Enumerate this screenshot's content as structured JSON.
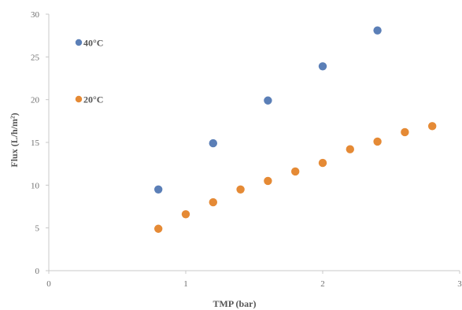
{
  "chart_data": {
    "type": "scatter",
    "xlabel": "TMP (bar)",
    "ylabel": "Flux (L/h/m²)",
    "xlim": [
      0,
      3
    ],
    "ylim": [
      0,
      30
    ],
    "xticks": [
      0,
      1,
      2,
      3
    ],
    "yticks": [
      0,
      5,
      10,
      15,
      20,
      25,
      30
    ],
    "grid": false,
    "legend_position": "top-left",
    "series": [
      {
        "name": "40°C",
        "color": "#5b7fb7",
        "points": [
          {
            "x": 0.8,
            "y": 9.5
          },
          {
            "x": 1.2,
            "y": 14.9
          },
          {
            "x": 1.6,
            "y": 19.9
          },
          {
            "x": 2.0,
            "y": 23.9
          },
          {
            "x": 2.4,
            "y": 28.1
          }
        ]
      },
      {
        "name": "20°C",
        "color": "#e58a35",
        "points": [
          {
            "x": 0.8,
            "y": 4.9
          },
          {
            "x": 1.0,
            "y": 6.6
          },
          {
            "x": 1.2,
            "y": 8.0
          },
          {
            "x": 1.4,
            "y": 9.5
          },
          {
            "x": 1.6,
            "y": 10.5
          },
          {
            "x": 1.8,
            "y": 11.6
          },
          {
            "x": 2.0,
            "y": 12.6
          },
          {
            "x": 2.2,
            "y": 14.2
          },
          {
            "x": 2.4,
            "y": 15.1
          },
          {
            "x": 2.6,
            "y": 16.2
          },
          {
            "x": 2.8,
            "y": 16.9
          }
        ]
      }
    ]
  }
}
